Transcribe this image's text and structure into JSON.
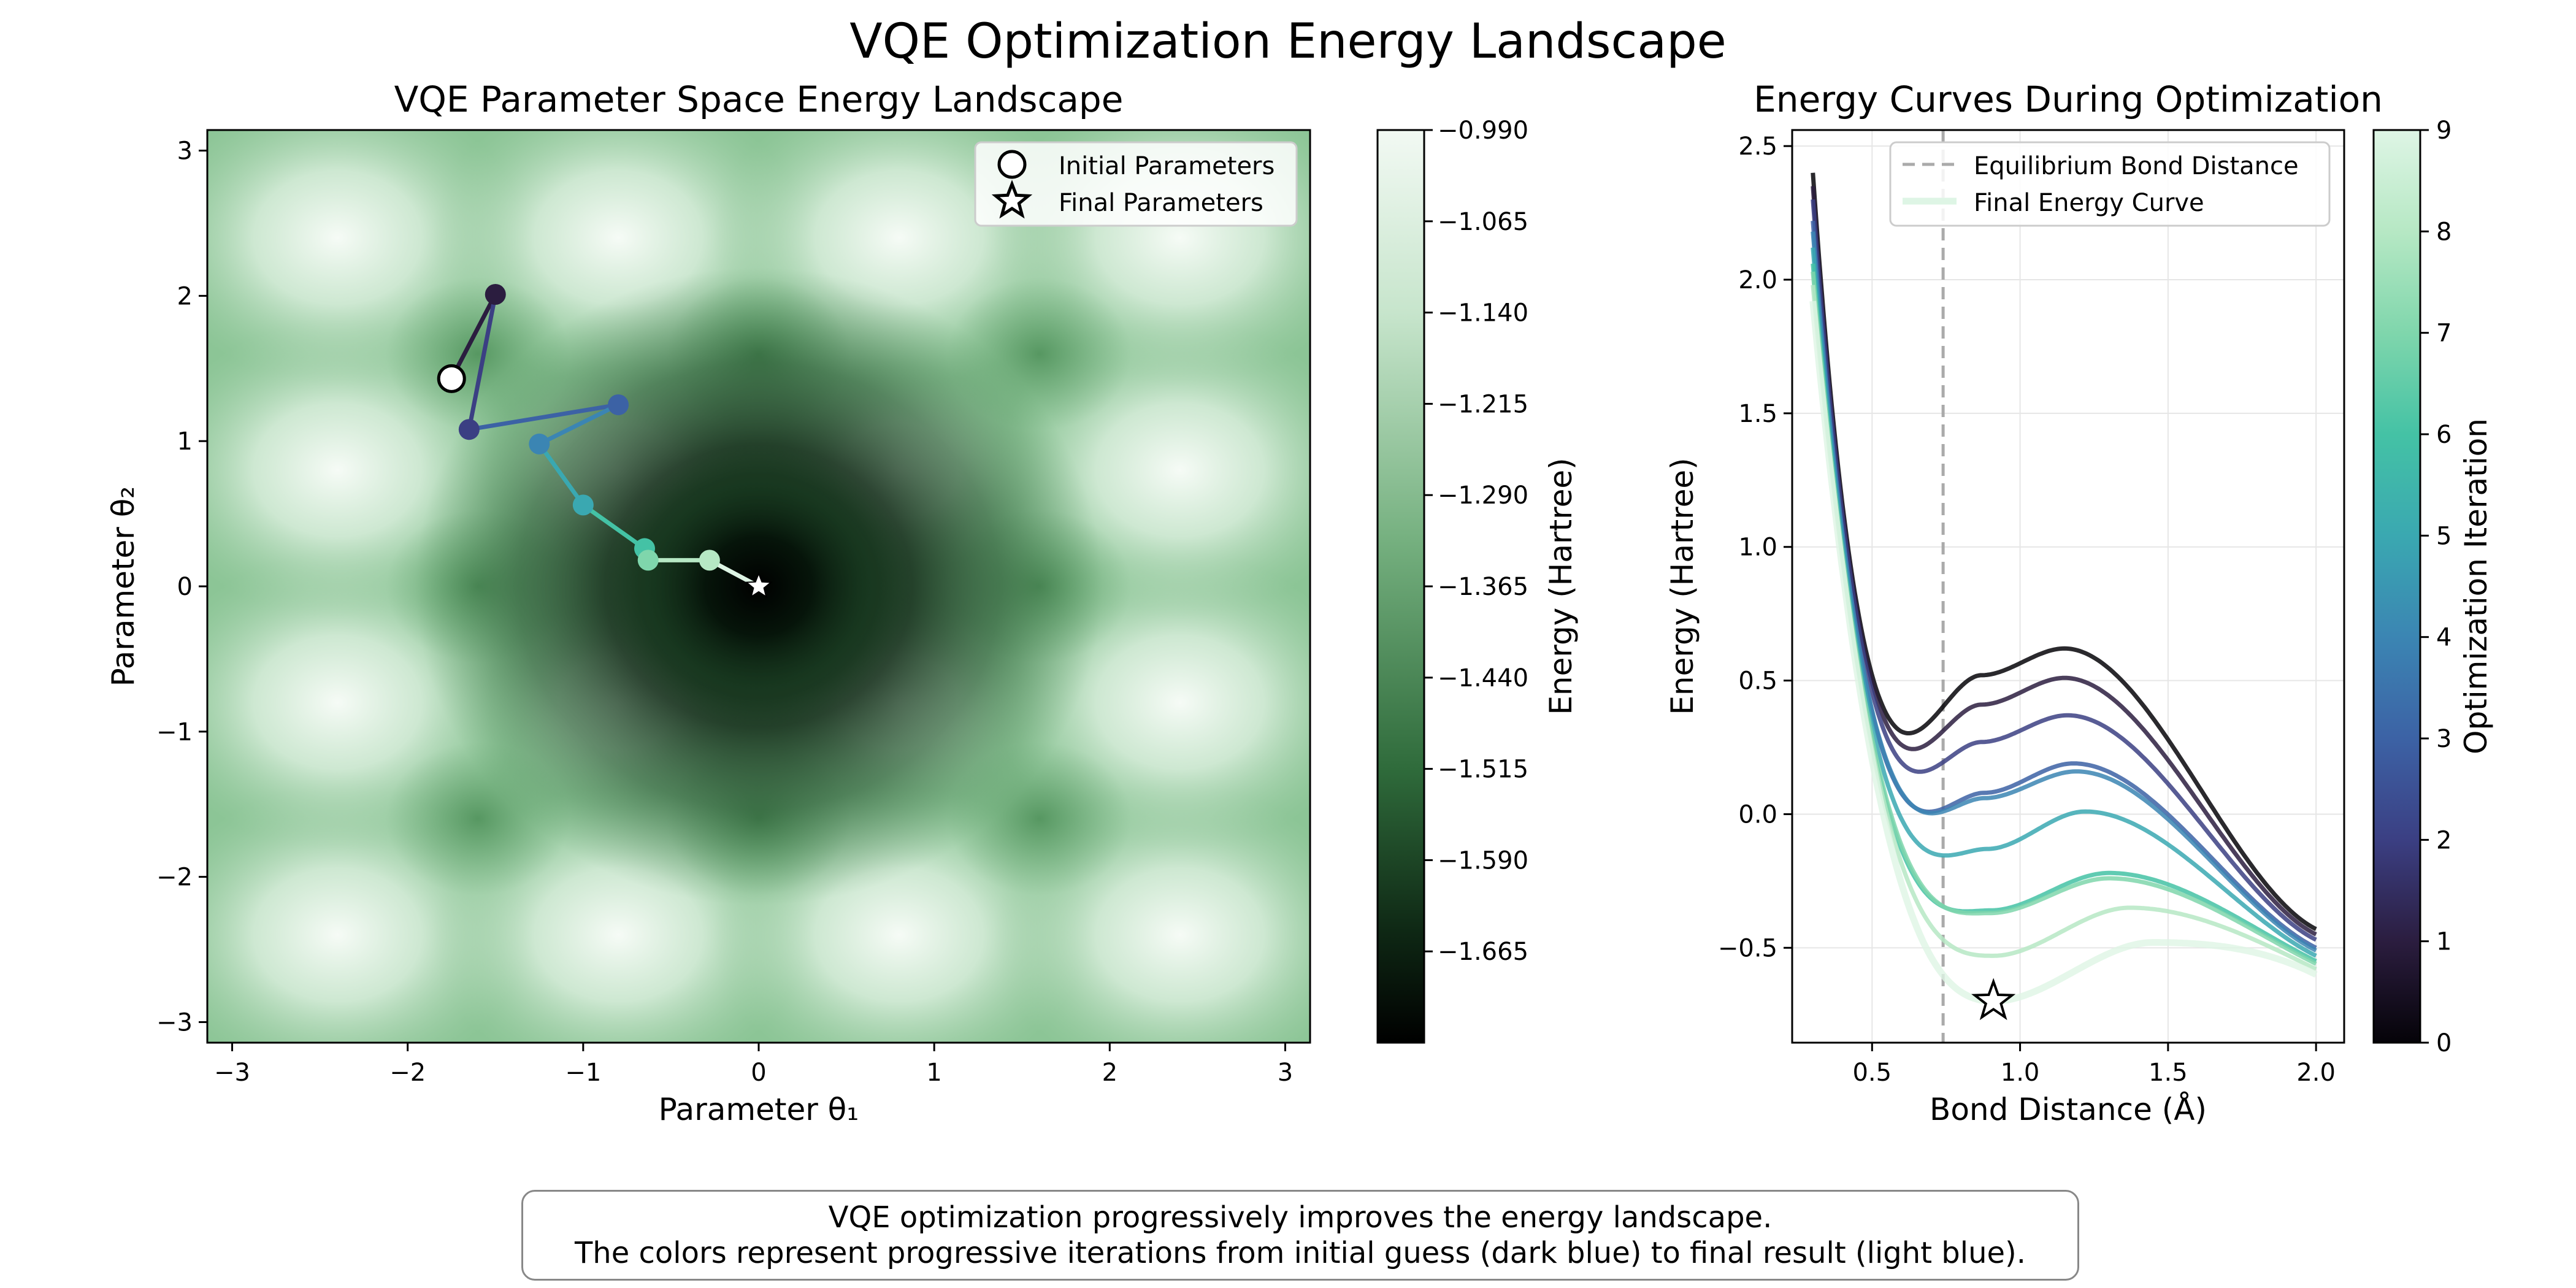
{
  "suptitle": "VQE Optimization Energy Landscape",
  "caption": {
    "line1": "VQE optimization progressively improves the energy landscape.",
    "line2": "The colors represent progressive iterations from initial guess (dark blue) to final result (light blue)."
  },
  "chart_data": [
    {
      "type": "heatmap",
      "title": "VQE Parameter Space Energy Landscape",
      "xlabel": "Parameter θ₁",
      "ylabel": "Parameter θ₂",
      "xlim": [
        -3.14159,
        3.14159
      ],
      "ylim": [
        -3.14159,
        3.14159
      ],
      "xticks": [
        -3,
        -2,
        -1,
        0,
        1,
        2,
        3
      ],
      "yticks": [
        -3,
        -2,
        -1,
        0,
        1,
        2,
        3
      ],
      "colorbar": {
        "label": "Energy (Hartree)",
        "range": [
          -1.74,
          -0.99
        ],
        "ticks": [
          -0.99,
          -1.065,
          -1.14,
          -1.215,
          -1.29,
          -1.365,
          -1.44,
          -1.515,
          -1.59,
          -1.665
        ],
        "tick_labels": [
          "−0.990",
          "−1.065",
          "−1.140",
          "−1.215",
          "−1.290",
          "−1.365",
          "−1.440",
          "−1.515",
          "−1.590",
          "−1.665"
        ]
      },
      "trajectory": {
        "x": [
          -1.75,
          -1.5,
          -1.65,
          -0.8,
          -1.25,
          -1.0,
          -0.65,
          -0.63,
          -0.28,
          0.0
        ],
        "y": [
          1.43,
          2.01,
          1.08,
          1.25,
          0.98,
          0.56,
          0.26,
          0.18,
          0.18,
          0.0
        ],
        "iterations": [
          0,
          1,
          2,
          3,
          4,
          5,
          6,
          7,
          8,
          9
        ]
      },
      "legend": {
        "placement": "upper right",
        "entries": [
          "Initial Parameters",
          "Final Parameters"
        ]
      }
    },
    {
      "type": "line",
      "title": "Energy Curves During Optimization",
      "xlabel": "Bond Distance (Å)",
      "ylabel": "Energy (Hartree)",
      "xlim": [
        0.23,
        2.095
      ],
      "ylim": [
        -0.855,
        2.56
      ],
      "xticks": [
        0.5,
        1.0,
        1.5,
        2.0
      ],
      "xtick_labels": [
        "0.5",
        "1.0",
        "1.5",
        "2.0"
      ],
      "yticks": [
        -0.5,
        0.0,
        0.5,
        1.0,
        1.5,
        2.0,
        2.5
      ],
      "ytick_labels": [
        "−0.5",
        "0.0",
        "0.5",
        "1.0",
        "1.5",
        "2.0",
        "2.5"
      ],
      "grid": true,
      "equilibrium_bond_distance": 0.74,
      "final_min": {
        "x": 0.91,
        "y": -0.7
      },
      "series_curves": [
        {
          "iteration": 0,
          "min_x": 0.87,
          "min_y": 0.52,
          "peak_x": 1.15,
          "peak_y": 0.62,
          "end_y": -0.43,
          "start_y": 2.4
        },
        {
          "iteration": 1,
          "min_x": 0.87,
          "min_y": 0.41,
          "peak_x": 1.15,
          "peak_y": 0.51,
          "end_y": -0.45,
          "start_y": 2.35
        },
        {
          "iteration": 2,
          "min_x": 0.87,
          "min_y": 0.27,
          "peak_x": 1.16,
          "peak_y": 0.37,
          "end_y": -0.47,
          "start_y": 2.3
        },
        {
          "iteration": 3,
          "min_x": 0.88,
          "min_y": 0.08,
          "peak_x": 1.18,
          "peak_y": 0.19,
          "end_y": -0.5,
          "start_y": 2.22
        },
        {
          "iteration": 4,
          "min_x": 0.88,
          "min_y": 0.06,
          "peak_x": 1.19,
          "peak_y": 0.16,
          "end_y": -0.51,
          "start_y": 2.18
        },
        {
          "iteration": 5,
          "min_x": 0.89,
          "min_y": -0.13,
          "peak_x": 1.22,
          "peak_y": 0.01,
          "end_y": -0.53,
          "start_y": 2.12
        },
        {
          "iteration": 6,
          "min_x": 0.9,
          "min_y": -0.36,
          "peak_x": 1.3,
          "peak_y": -0.22,
          "end_y": -0.55,
          "start_y": 2.06
        },
        {
          "iteration": 7,
          "min_x": 0.9,
          "min_y": -0.37,
          "peak_x": 1.3,
          "peak_y": -0.24,
          "end_y": -0.56,
          "start_y": 2.03
        },
        {
          "iteration": 8,
          "min_x": 0.91,
          "min_y": -0.53,
          "peak_x": 1.37,
          "peak_y": -0.35,
          "end_y": -0.58,
          "start_y": 1.98
        },
        {
          "iteration": 9,
          "min_x": 0.91,
          "min_y": -0.7,
          "peak_x": 1.45,
          "peak_y": -0.48,
          "end_y": -0.6,
          "start_y": 1.92
        }
      ],
      "colorbar": {
        "label": "Optimization Iteration",
        "range": [
          0,
          9
        ],
        "ticks": [
          0,
          1,
          2,
          3,
          4,
          5,
          6,
          7,
          8,
          9
        ],
        "tick_labels": [
          "0",
          "1",
          "2",
          "3",
          "4",
          "5",
          "6",
          "7",
          "8",
          "9"
        ]
      },
      "legend": {
        "placement": "upper right",
        "entries": [
          "Equilibrium Bond Distance",
          "Final Energy Curve"
        ]
      }
    }
  ],
  "colors": {
    "landscape_light": "#f2f9f3",
    "landscape_dark": "#000000",
    "iteration_cmap": [
      "#050308",
      "#2b1d3f",
      "#3b3f83",
      "#3c62a5",
      "#3b85b3",
      "#3aa8b1",
      "#44c2a5",
      "#7fd6ac",
      "#b6e8c4",
      "#def5e5"
    ],
    "equilibrium_line": "#aaaaaa"
  }
}
